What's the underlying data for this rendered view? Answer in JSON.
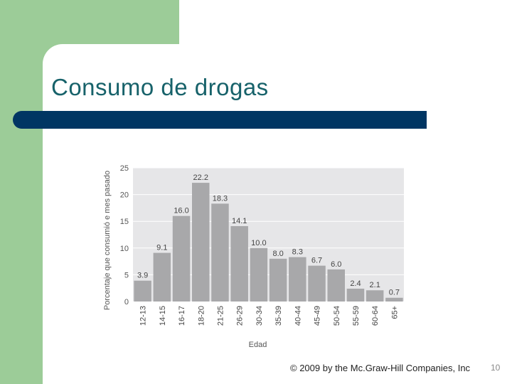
{
  "slide": {
    "title": "Consumo de drogas",
    "copyright": "© 2009 by the Mc.Graw-Hill Companies, Inc",
    "page_number": "10"
  },
  "colors": {
    "background_green": "#9ccc98",
    "title_text": "#17626a",
    "title_bar": "#003663",
    "bar_fill": "#a8a8aa",
    "plot_background": "#e6e6e8"
  },
  "chart_data": {
    "type": "bar",
    "title": "",
    "xlabel": "Edad",
    "ylabel": "Porcentaje que consumió e mes pasado",
    "categories": [
      "12-13",
      "14-15",
      "16-17",
      "18-20",
      "21-25",
      "26-29",
      "30-34",
      "35-39",
      "40-44",
      "45-49",
      "50-54",
      "55-59",
      "60-64",
      "65+"
    ],
    "values": [
      3.9,
      9.1,
      16.0,
      22.2,
      18.3,
      14.1,
      10.0,
      8.0,
      8.3,
      6.7,
      6.0,
      2.4,
      2.1,
      0.7
    ],
    "value_labels": [
      "3.9",
      "9.1",
      "16.0",
      "22.2",
      "18.3",
      "14.1",
      "10.0",
      "8.0",
      "8.3",
      "6.7",
      "6.0",
      "2.4",
      "2.1",
      "0.7"
    ],
    "yticks": [
      0,
      5,
      10,
      15,
      20,
      25
    ],
    "ylim": [
      0,
      25
    ],
    "grid": true
  }
}
